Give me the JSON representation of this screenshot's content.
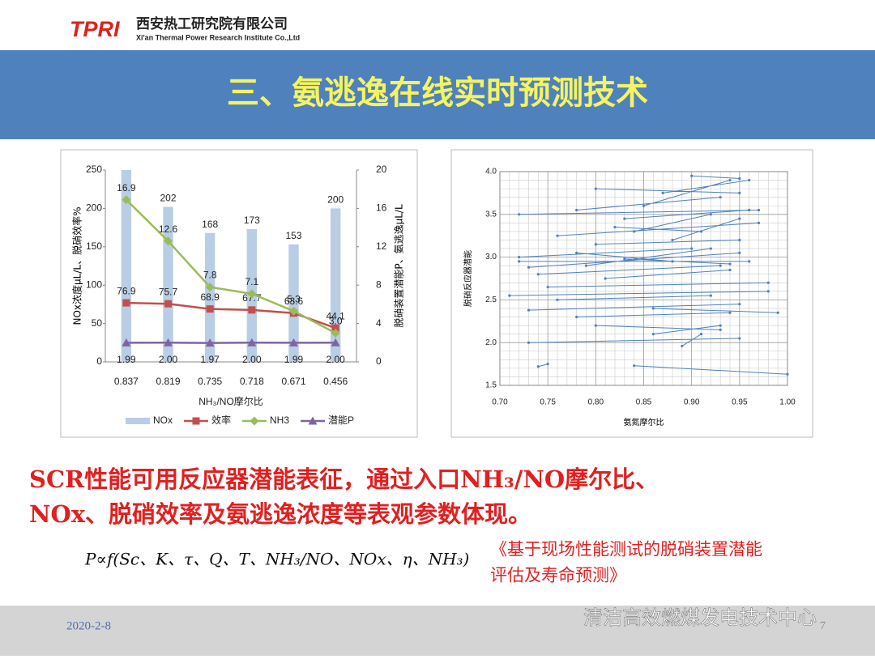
{
  "header": {
    "logo": "TPRI",
    "company": "西安热工研究院有限公司",
    "company_en": "Xi'an Thermal Power Research Institute Co.,Ltd",
    "title": "三、氨逃逸在线实时预测技术"
  },
  "chart_data": [
    {
      "type": "bar",
      "categories": [
        "0.837",
        "0.819",
        "0.735",
        "0.718",
        "0.671",
        "0.456"
      ],
      "x_label": "NH₃/NO摩尔比",
      "y_label": "NOx浓度μL/L、脱硝效率%",
      "y2_label": "脱硝装置潜能P、氨逃逸μL/L",
      "ylim": [
        0,
        250
      ],
      "yticks": [
        0,
        50,
        100,
        150,
        200,
        250
      ],
      "y2lim": [
        0,
        20
      ],
      "y2ticks": [
        0,
        4,
        8,
        12,
        16,
        20
      ],
      "series": [
        {
          "name": "NOx",
          "type": "bar",
          "color": "#b9cde5",
          "values": [
            250,
            202,
            168,
            173,
            153,
            200
          ],
          "value_labels": [
            null,
            "202",
            "168",
            "173",
            "153",
            "200"
          ]
        },
        {
          "name": "效率",
          "type": "line",
          "marker": "square",
          "color": "#c0504d",
          "values": [
            76.9,
            75.7,
            68.9,
            67.7,
            63.6,
            44.1
          ]
        },
        {
          "name": "NH3",
          "type": "line",
          "marker": "diamond",
          "axis": "y2",
          "color": "#9bbb59",
          "values": [
            16.9,
            12.6,
            7.8,
            7.1,
            5.3,
            3.0
          ],
          "value_labels": [
            "16.9",
            "12.6",
            "7.8",
            "7.1",
            "5.3",
            "3.0"
          ]
        },
        {
          "name": "潜能P",
          "type": "line",
          "marker": "triangle",
          "axis": "y2",
          "color": "#8064a2",
          "values": [
            1.99,
            2.0,
            1.97,
            2.0,
            1.99,
            2.0
          ],
          "value_labels": [
            "1.99",
            "2.00",
            "1.97",
            "2.00",
            "1.99",
            "2.00"
          ]
        }
      ],
      "legend": "bottom"
    },
    {
      "type": "line",
      "x_label": "氨氮摩尔比",
      "y_label": "脱硝反应器潜能",
      "color": "#4f81bd",
      "grid": true,
      "xlim": [
        0.7,
        1.0
      ],
      "xticks": [
        {
          "value": 0.7,
          "label": "0.70"
        },
        {
          "value": 0.75,
          "label": "0.75"
        },
        {
          "value": 0.8,
          "label": "0.80"
        },
        {
          "value": 0.85,
          "label": "0.85"
        },
        {
          "value": 0.9,
          "label": "0.90"
        },
        {
          "value": 0.95,
          "label": "0.95"
        },
        {
          "value": 1.0,
          "label": "1.00"
        }
      ],
      "ylim": [
        1.5,
        4.0
      ],
      "yticks": [
        1.5,
        {
          "value": 2,
          "label": "2.0"
        },
        2.5,
        {
          "value": 3,
          "label": "3.0"
        },
        3.5,
        {
          "value": 4,
          "label": "4.0"
        }
      ],
      "x": [
        0.72,
        0.97,
        null,
        0.73,
        0.95,
        null,
        0.71,
        0.98,
        null,
        0.73,
        0.95,
        null,
        0.73,
        0.95,
        null,
        0.74,
        0.75,
        null,
        0.84,
        1.0,
        null,
        0.78,
        0.93,
        null,
        0.8,
        0.95,
        null,
        0.76,
        0.97,
        null,
        0.72,
        0.96,
        null,
        0.74,
        0.93,
        null,
        0.75,
        0.98,
        null,
        0.72,
        0.9,
        null,
        0.8,
        0.95,
        null,
        0.83,
        0.96,
        null,
        0.85,
        0.94,
        null,
        0.81,
        0.94,
        null,
        0.78,
        0.94,
        null,
        0.8,
        0.93,
        null,
        0.86,
        0.93,
        null,
        0.89,
        0.91,
        null,
        0.76,
        0.92,
        null,
        0.84,
        0.92,
        null,
        0.87,
        0.96,
        null,
        0.9,
        0.95,
        null,
        0.78,
        0.88,
        null,
        0.82,
        0.91,
        null,
        0.86,
        0.99,
        null,
        0.79,
        0.92,
        null,
        0.83,
        0.94,
        null,
        0.88,
        0.95
      ],
      "values": [
        3.5,
        3.55,
        null,
        2.88,
        3.05,
        null,
        2.55,
        2.6,
        null,
        2.38,
        2.45,
        null,
        2.0,
        2.05,
        null,
        1.72,
        1.75,
        null,
        1.73,
        1.63,
        null,
        3.55,
        3.7,
        null,
        3.8,
        3.75,
        null,
        3.25,
        3.4,
        null,
        2.95,
        2.95,
        null,
        2.8,
        2.9,
        null,
        2.65,
        2.7,
        null,
        3.0,
        3.1,
        null,
        3.15,
        3.2,
        null,
        3.45,
        3.55,
        null,
        3.6,
        3.9,
        null,
        2.75,
        2.85,
        null,
        2.3,
        2.35,
        null,
        2.2,
        2.15,
        null,
        2.1,
        2.2,
        null,
        1.96,
        2.1,
        null,
        2.5,
        2.55,
        null,
        3.3,
        3.5,
        null,
        3.75,
        3.9,
        null,
        3.95,
        3.92,
        null,
        3.05,
        2.95,
        null,
        3.35,
        3.3,
        null,
        2.4,
        2.35,
        null,
        2.9,
        3.1,
        null,
        2.98,
        2.92,
        null,
        3.2,
        3.45
      ]
    }
  ],
  "body": {
    "lines": [
      "SCR性能可用反应器潜能表征，通过入口NH₃/NO摩尔比、",
      "NOx、脱硝效率及氨逃逸浓度等表观参数体现。"
    ],
    "formula": "P∝f(Sc、K、τ、Q、T、NH₃/NO、NOx、η、NH₃)",
    "reference": [
      "《基于现场性能测试的脱硝装置潜能",
      "评估及寿命预测》"
    ]
  },
  "footer": {
    "date": "2020-2-8",
    "watermark": "清洁高效燃煤发电技术中心",
    "page": "7"
  }
}
